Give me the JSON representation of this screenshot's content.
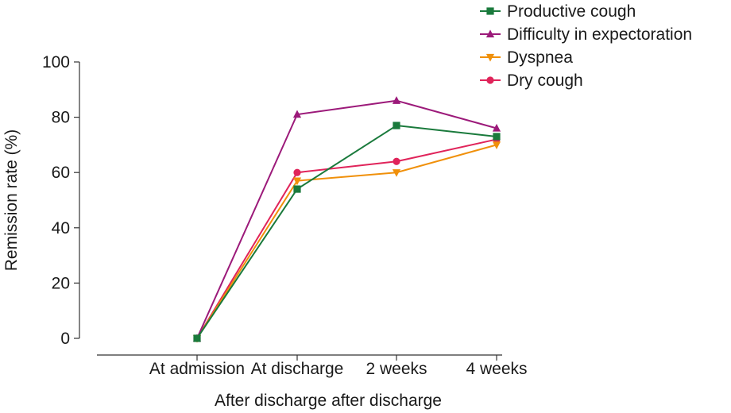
{
  "chart_data": {
    "type": "line",
    "title": "",
    "xlabel": "After discharge after discharge",
    "ylabel": "Remission rate (%)",
    "ylim": [
      0,
      100
    ],
    "yticks": [
      0,
      20,
      40,
      60,
      80,
      100
    ],
    "categories": [
      "At admission",
      "At discharge",
      "2 weeks",
      "4 weeks"
    ],
    "grid": false,
    "legend_position": "top-right",
    "series": [
      {
        "name": "Productive cough",
        "marker": "square",
        "color": "#1a7a3c",
        "values": [
          0,
          54,
          77,
          73
        ]
      },
      {
        "name": "Difficulty in expectoration",
        "marker": "triangle-up",
        "color": "#9c1a7a",
        "values": [
          0,
          81,
          86,
          76
        ]
      },
      {
        "name": "Dyspnea",
        "marker": "triangle-down",
        "color": "#f0900a",
        "values": [
          0,
          57,
          60,
          70
        ]
      },
      {
        "name": "Dry cough",
        "marker": "circle",
        "color": "#e0245a",
        "values": [
          0,
          60,
          64,
          72
        ]
      }
    ]
  }
}
